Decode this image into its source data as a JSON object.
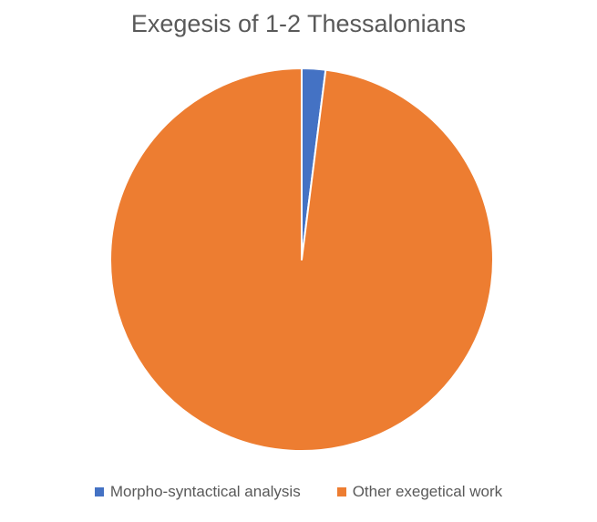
{
  "chart_data": {
    "type": "pie",
    "title": "Exegesis of 1-2 Thessalonians",
    "categories": [
      "Morpho-syntactical analysis",
      "Other exegetical work"
    ],
    "values": [
      2,
      98
    ],
    "colors": [
      "#4472C4",
      "#ED7D31"
    ],
    "legend_position": "bottom"
  }
}
